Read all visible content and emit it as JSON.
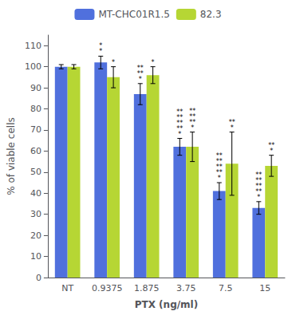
{
  "chart_data": {
    "type": "bar",
    "categories": [
      "NT",
      "0.9375",
      "1.875",
      "3.75",
      "7.5",
      "15"
    ],
    "series": [
      {
        "name": "MT-CHC01R1.5",
        "values": [
          100,
          102,
          87,
          62,
          41,
          33
        ],
        "errors": [
          1.0,
          3.0,
          5.0,
          4.0,
          4.0,
          3.0
        ],
        "annotations": [
          null,
          "*\n*",
          "**\n**\n*",
          "**\n**\n**\n**\n*",
          "**\n**\n**\n**\n*",
          "**\n**\n**\n**\n*"
        ]
      },
      {
        "name": "82.3",
        "values": [
          100,
          95,
          96,
          62,
          54,
          53
        ],
        "errors": [
          1.0,
          5.0,
          4.0,
          7.0,
          15.0,
          5.0
        ],
        "annotations": [
          null,
          "*",
          "*",
          "**\n**\n**\n*",
          "**\n*",
          "**\n*"
        ]
      }
    ],
    "xlabel": "PTX (ng/ml)",
    "ylabel": "% of viable cells",
    "ylim": [
      0,
      115
    ],
    "yticks": [
      0,
      10,
      20,
      30,
      40,
      50,
      60,
      70,
      80,
      90,
      100,
      110
    ],
    "grid": false,
    "legend": "top"
  }
}
